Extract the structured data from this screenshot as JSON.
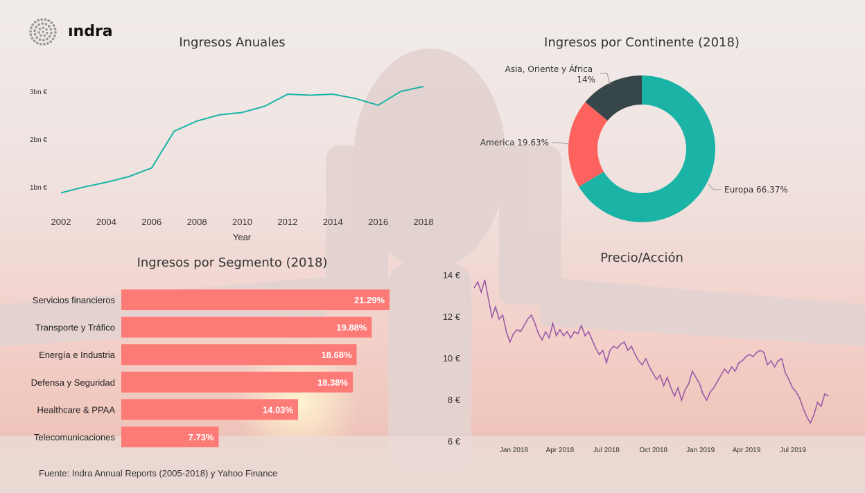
{
  "brand": {
    "name": "ındra"
  },
  "colors": {
    "teal": "#1ab3a6",
    "coral": "#fd625e",
    "dark": "#374649",
    "bar": "#fd7b77",
    "stock": "#9c5aa8"
  },
  "footer": {
    "source": "Fuente: Indra Annual Reports (2005-2018) y Yahoo Finance"
  },
  "chart_data": [
    {
      "id": "annual",
      "type": "line",
      "title": "Ingresos Anuales",
      "xlabel": "Year",
      "ylabel": "",
      "x": [
        2002,
        2003,
        2004,
        2005,
        2006,
        2007,
        2008,
        2009,
        2010,
        2011,
        2012,
        2013,
        2014,
        2015,
        2016,
        2017,
        2018
      ],
      "values": [
        0.88,
        1.0,
        1.1,
        1.22,
        1.4,
        2.17,
        2.38,
        2.51,
        2.56,
        2.69,
        2.94,
        2.92,
        2.94,
        2.85,
        2.71,
        3.0,
        3.1
      ],
      "xticks": [
        "2002",
        "2004",
        "2006",
        "2008",
        "2010",
        "2012",
        "2014",
        "2016",
        "2018"
      ],
      "yticks": [
        "1bn €",
        "2bn €",
        "3bn €"
      ],
      "ytick_values": [
        1,
        2,
        3
      ],
      "xlim": [
        2002,
        2018
      ],
      "ylim": [
        0.6,
        3.35
      ]
    },
    {
      "id": "continent",
      "type": "pie",
      "title": "Ingresos por Continente (2018)",
      "slices": [
        {
          "label": "Europa 66.37%",
          "value": 66.37
        },
        {
          "label": "America 19.63%",
          "value": 19.63
        },
        {
          "label": "Asia, Oriente y África 14%",
          "value": 14
        }
      ]
    },
    {
      "id": "segment",
      "type": "bar",
      "title": "Ingresos por Segmento (2018)",
      "categories": [
        "Servicios financieros",
        "Transporte y Tráfico",
        "Energía e Industria",
        "Defensa y Seguridad",
        "Healthcare & PPAA",
        "Telecomunicaciones"
      ],
      "values": [
        21.29,
        19.88,
        18.68,
        18.38,
        14.03,
        7.73
      ],
      "labels": [
        "21.29%",
        "19.88%",
        "18.68%",
        "18.38%",
        "14.03%",
        "7.73%"
      ]
    },
    {
      "id": "stock",
      "type": "line",
      "title": "Precio/Acción",
      "xticks": [
        "Jan 2018",
        "Apr 2018",
        "Jul 2018",
        "Oct 2018",
        "Jan 2019",
        "Apr 2019",
        "Jul 2019"
      ],
      "yticks": [
        "14 €",
        "12 €",
        "10 €",
        "8 €",
        "6 €"
      ],
      "ytick_values": [
        14,
        12,
        10,
        8,
        6
      ],
      "ylim": [
        6,
        14
      ],
      "points": [
        [
          "2017-10-15",
          13.4
        ],
        [
          "2017-10-22",
          13.7
        ],
        [
          "2017-10-29",
          13.2
        ],
        [
          "2017-11-05",
          13.8
        ],
        [
          "2017-11-12",
          12.9
        ],
        [
          "2017-11-19",
          12.0
        ],
        [
          "2017-11-26",
          12.5
        ],
        [
          "2017-12-03",
          11.9
        ],
        [
          "2017-12-10",
          12.1
        ],
        [
          "2017-12-17",
          11.3
        ],
        [
          "2017-12-24",
          10.8
        ],
        [
          "2017-12-31",
          11.2
        ],
        [
          "2018-01-07",
          11.4
        ],
        [
          "2018-01-14",
          11.3
        ],
        [
          "2018-01-21",
          11.6
        ],
        [
          "2018-01-28",
          11.9
        ],
        [
          "2018-02-04",
          12.1
        ],
        [
          "2018-02-11",
          11.7
        ],
        [
          "2018-02-18",
          11.2
        ],
        [
          "2018-02-25",
          10.9
        ],
        [
          "2018-03-04",
          11.3
        ],
        [
          "2018-03-11",
          11.0
        ],
        [
          "2018-03-18",
          11.7
        ],
        [
          "2018-03-25",
          11.1
        ],
        [
          "2018-04-01",
          11.4
        ],
        [
          "2018-04-08",
          11.1
        ],
        [
          "2018-04-15",
          11.3
        ],
        [
          "2018-04-22",
          11.0
        ],
        [
          "2018-04-29",
          11.3
        ],
        [
          "2018-05-06",
          11.2
        ],
        [
          "2018-05-13",
          11.6
        ],
        [
          "2018-05-20",
          11.1
        ],
        [
          "2018-05-27",
          11.3
        ],
        [
          "2018-06-03",
          10.9
        ],
        [
          "2018-06-10",
          10.5
        ],
        [
          "2018-06-17",
          10.2
        ],
        [
          "2018-06-24",
          10.4
        ],
        [
          "2018-07-01",
          9.8
        ],
        [
          "2018-07-08",
          10.4
        ],
        [
          "2018-07-15",
          10.6
        ],
        [
          "2018-07-22",
          10.5
        ],
        [
          "2018-07-29",
          10.7
        ],
        [
          "2018-08-05",
          10.8
        ],
        [
          "2018-08-12",
          10.4
        ],
        [
          "2018-08-19",
          10.6
        ],
        [
          "2018-08-26",
          10.2
        ],
        [
          "2018-09-02",
          9.9
        ],
        [
          "2018-09-09",
          9.7
        ],
        [
          "2018-09-16",
          10.0
        ],
        [
          "2018-09-23",
          9.6
        ],
        [
          "2018-09-30",
          9.3
        ],
        [
          "2018-10-07",
          9.0
        ],
        [
          "2018-10-14",
          9.2
        ],
        [
          "2018-10-21",
          8.7
        ],
        [
          "2018-10-28",
          9.1
        ],
        [
          "2018-11-04",
          8.6
        ],
        [
          "2018-11-11",
          8.2
        ],
        [
          "2018-11-18",
          8.6
        ],
        [
          "2018-11-25",
          8.0
        ],
        [
          "2018-12-02",
          8.5
        ],
        [
          "2018-12-09",
          8.8
        ],
        [
          "2018-12-16",
          9.4
        ],
        [
          "2018-12-23",
          9.1
        ],
        [
          "2018-12-30",
          8.8
        ],
        [
          "2019-01-06",
          8.3
        ],
        [
          "2019-01-13",
          8.0
        ],
        [
          "2019-01-20",
          8.4
        ],
        [
          "2019-01-27",
          8.6
        ],
        [
          "2019-02-03",
          8.9
        ],
        [
          "2019-02-10",
          9.2
        ],
        [
          "2019-02-17",
          9.5
        ],
        [
          "2019-02-24",
          9.3
        ],
        [
          "2019-03-03",
          9.6
        ],
        [
          "2019-03-10",
          9.4
        ],
        [
          "2019-03-17",
          9.8
        ],
        [
          "2019-03-24",
          9.9
        ],
        [
          "2019-03-31",
          10.1
        ],
        [
          "2019-04-07",
          10.2
        ],
        [
          "2019-04-14",
          10.1
        ],
        [
          "2019-04-21",
          10.3
        ],
        [
          "2019-04-28",
          10.4
        ],
        [
          "2019-05-05",
          10.3
        ],
        [
          "2019-05-12",
          9.7
        ],
        [
          "2019-05-19",
          9.9
        ],
        [
          "2019-05-26",
          9.6
        ],
        [
          "2019-06-02",
          9.9
        ],
        [
          "2019-06-09",
          10.0
        ],
        [
          "2019-06-16",
          9.3
        ],
        [
          "2019-06-23",
          9.0
        ],
        [
          "2019-06-30",
          8.6
        ],
        [
          "2019-07-07",
          8.4
        ],
        [
          "2019-07-14",
          8.1
        ],
        [
          "2019-07-21",
          7.6
        ],
        [
          "2019-07-28",
          7.2
        ],
        [
          "2019-08-04",
          6.9
        ],
        [
          "2019-08-11",
          7.3
        ],
        [
          "2019-08-18",
          7.9
        ],
        [
          "2019-08-25",
          7.7
        ],
        [
          "2019-09-01",
          8.3
        ],
        [
          "2019-09-08",
          8.2
        ]
      ]
    }
  ]
}
